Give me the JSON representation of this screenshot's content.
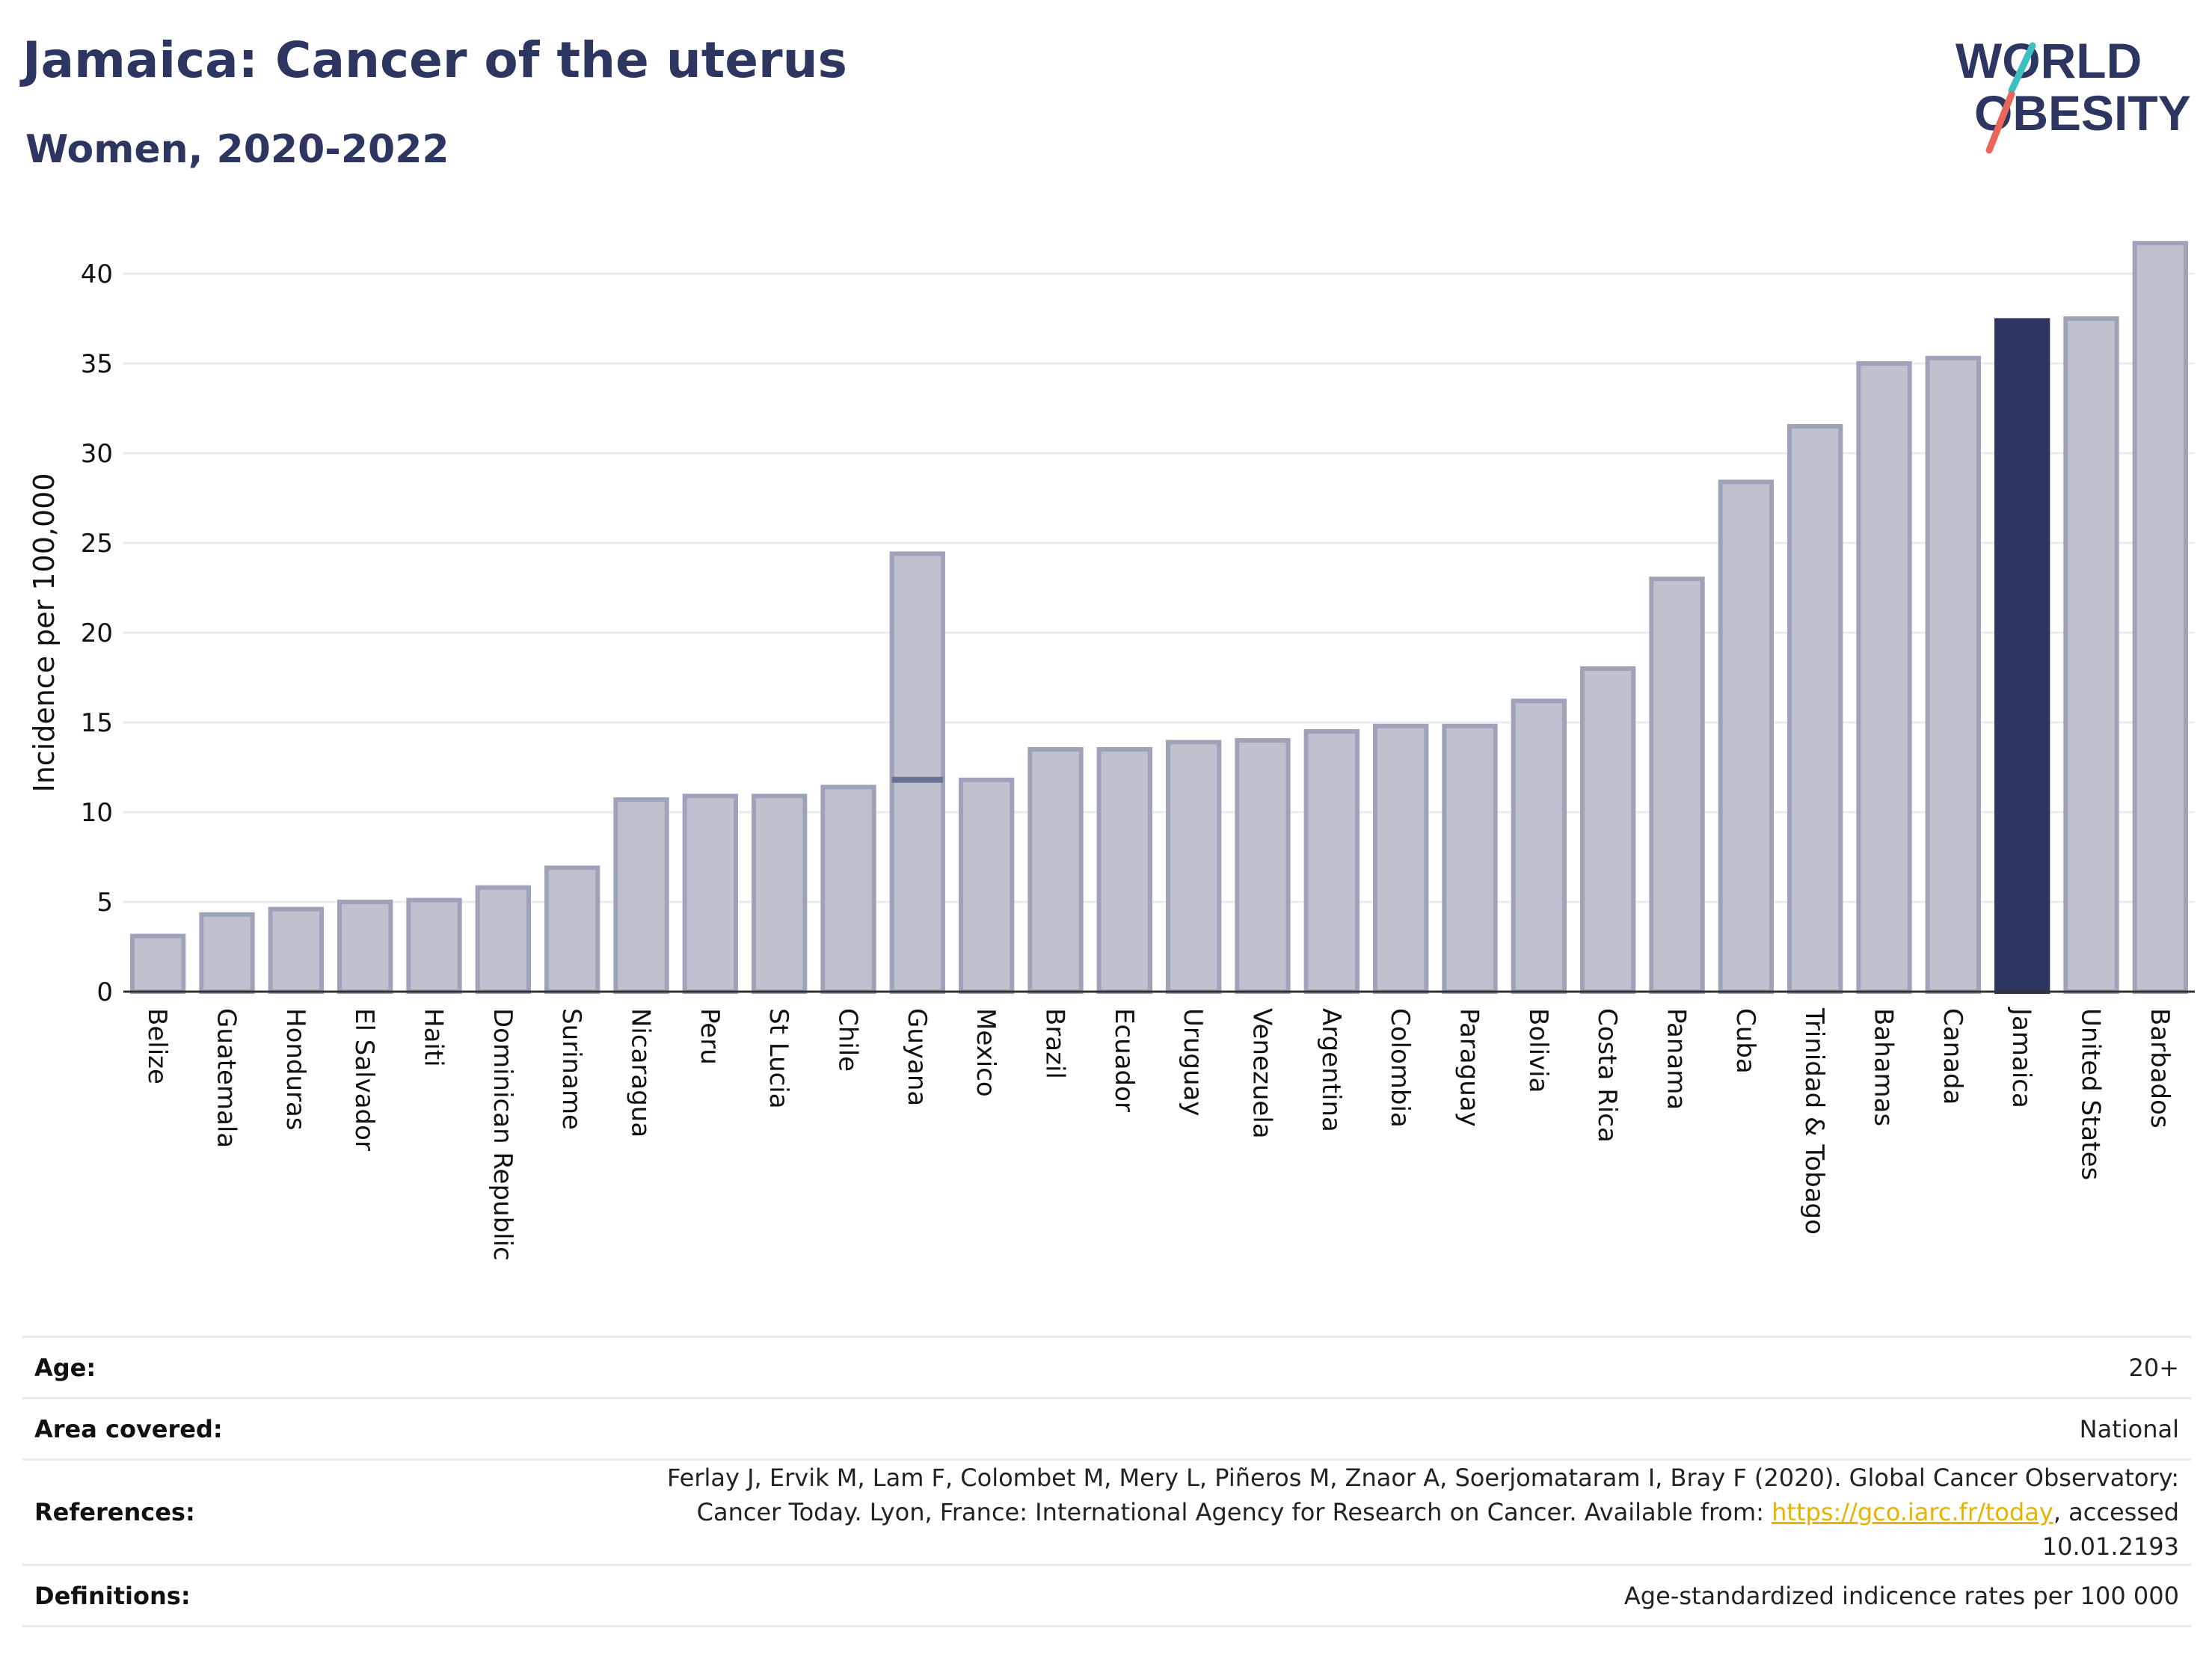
{
  "header": {
    "title": "Jamaica: Cancer of the uterus",
    "subtitle": "Women, 2020-2022",
    "logo_line1": "WORLD",
    "logo_line2": "OBESITY"
  },
  "colors": {
    "bar_fill": "#bfc2ce",
    "bar_stroke": "#9ea3b9",
    "highlight": "#2d3561",
    "title": "#2d3561",
    "link": "#e5b300",
    "logo_teal": "#3bbfc0",
    "logo_red": "#e8665a"
  },
  "chart_data": {
    "type": "bar",
    "ylabel": "Incidence per 100,000",
    "xlabel": "",
    "ylim": [
      0,
      43
    ],
    "yticks": [
      0,
      5,
      10,
      15,
      20,
      25,
      30,
      35,
      40
    ],
    "grid": true,
    "highlight": "Jamaica",
    "categories": [
      "Belize",
      "Guatemala",
      "Honduras",
      "El Salvador",
      "Haiti",
      "Dominican Republic",
      "Suriname",
      "Nicaragua",
      "Peru",
      "St Lucia",
      "Chile",
      "Guyana",
      "Mexico",
      "Brazil",
      "Ecuador",
      "Uruguay",
      "Venezuela",
      "Argentina",
      "Colombia",
      "Paraguay",
      "Bolivia",
      "Costa Rica",
      "Panama",
      "Cuba",
      "Trinidad & Tobago",
      "Bahamas",
      "Canada",
      "Jamaica",
      "United States",
      "Barbados"
    ],
    "values": [
      3.1,
      4.3,
      4.6,
      5.0,
      5.1,
      5.8,
      6.9,
      10.7,
      10.9,
      10.9,
      11.4,
      24.4,
      11.8,
      13.5,
      13.5,
      13.9,
      14.0,
      14.5,
      14.8,
      14.8,
      16.2,
      18.0,
      23.0,
      28.4,
      31.5,
      35.0,
      35.3,
      37.4,
      37.5,
      41.7
    ],
    "inner_markers": [
      {
        "category": "Guyana",
        "value": 11.8
      }
    ]
  },
  "meta": [
    {
      "key": "Age:",
      "value": "20+"
    },
    {
      "key": "Area covered:",
      "value": "National"
    },
    {
      "key": "References:",
      "ref_text": "Ferlay J, Ervik M, Lam F, Colombet M, Mery L, Piñeros M, Znaor A, Soerjomataram I, Bray F (2020). Global Cancer Observatory: Cancer Today. Lyon, France: International Agency for Research on Cancer. Available from: ",
      "ref_link": "https://gco.iarc.fr/today",
      "ref_after": ", accessed 10.01.2193"
    },
    {
      "key": "Definitions:",
      "value": "Age-standardized indicence rates per 100 000"
    }
  ]
}
